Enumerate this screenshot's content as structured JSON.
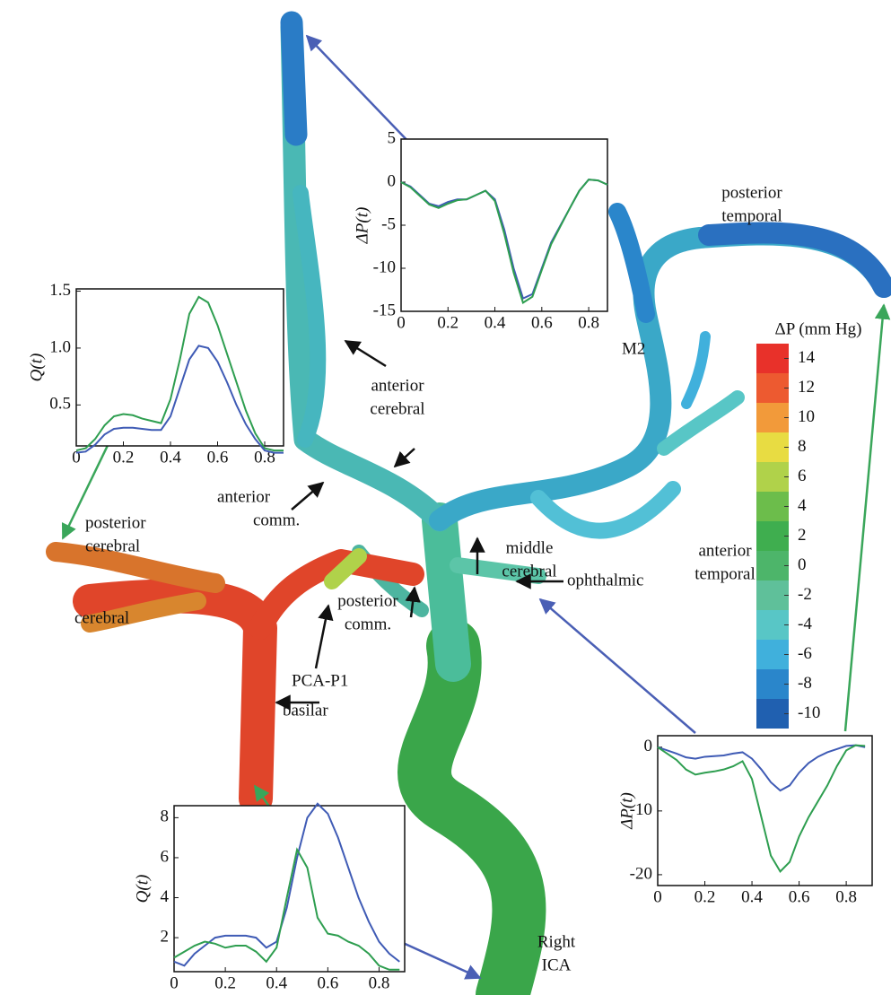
{
  "chart_data": [
    {
      "type": "line",
      "ylabel": "ΔP(t)",
      "x": [
        0,
        0.04,
        0.08,
        0.12,
        0.16,
        0.2,
        0.24,
        0.28,
        0.32,
        0.36,
        0.4,
        0.44,
        0.48,
        0.52,
        0.56,
        0.6,
        0.64,
        0.68,
        0.72,
        0.76,
        0.8,
        0.84,
        0.88
      ],
      "xlim": [
        0,
        0.88
      ],
      "ylim": [
        -15,
        5
      ],
      "xticks": [
        0,
        0.2,
        0.4,
        0.6,
        0.8
      ],
      "yticks": [
        -15,
        -10,
        -5,
        0,
        5
      ],
      "series": [
        {
          "color": "#3f5bb5",
          "values": [
            0,
            -0.5,
            -1.5,
            -2.5,
            -2.8,
            -2.3,
            -2,
            -2,
            -1.5,
            -1,
            -2,
            -5.5,
            -10,
            -13.5,
            -13,
            -10,
            -7,
            -5,
            -3,
            -1,
            0.3,
            0.2,
            -0.3
          ]
        },
        {
          "color": "#2e9e50",
          "values": [
            0,
            -0.6,
            -1.6,
            -2.6,
            -3,
            -2.5,
            -2.1,
            -2,
            -1.5,
            -1,
            -2.2,
            -6,
            -10.5,
            -14,
            -13.3,
            -10.2,
            -7.2,
            -5.1,
            -3,
            -1,
            0.3,
            0.2,
            -0.3
          ]
        }
      ]
    },
    {
      "type": "line",
      "ylabel": "Q(t)",
      "x": [
        0,
        0.04,
        0.08,
        0.12,
        0.16,
        0.2,
        0.24,
        0.28,
        0.32,
        0.36,
        0.4,
        0.44,
        0.48,
        0.52,
        0.56,
        0.6,
        0.64,
        0.68,
        0.72,
        0.76,
        0.8,
        0.84,
        0.88
      ],
      "xlim": [
        0,
        0.88
      ],
      "ylim": [
        0.14,
        1.52
      ],
      "xticks": [
        0,
        0.2,
        0.4,
        0.6,
        0.8
      ],
      "yticks": [
        0.5,
        {
          "value": 1,
          "label": "1.0"
        },
        1.5
      ],
      "series": [
        {
          "color": "#2e9e50",
          "values": [
            0.1,
            0.12,
            0.2,
            0.32,
            0.4,
            0.42,
            0.41,
            0.38,
            0.36,
            0.34,
            0.55,
            0.9,
            1.3,
            1.45,
            1.4,
            1.2,
            0.95,
            0.7,
            0.45,
            0.25,
            0.12,
            0.1,
            0.1
          ]
        },
        {
          "color": "#3f5bb5",
          "values": [
            0.08,
            0.09,
            0.15,
            0.24,
            0.29,
            0.3,
            0.3,
            0.29,
            0.28,
            0.28,
            0.4,
            0.65,
            0.9,
            1.02,
            1,
            0.88,
            0.7,
            0.5,
            0.33,
            0.2,
            0.1,
            0.08,
            0.08
          ]
        }
      ]
    },
    {
      "type": "line",
      "ylabel": "Q(t)",
      "x": [
        0,
        0.04,
        0.08,
        0.12,
        0.16,
        0.2,
        0.24,
        0.28,
        0.32,
        0.36,
        0.4,
        0.44,
        0.48,
        0.52,
        0.56,
        0.6,
        0.64,
        0.68,
        0.72,
        0.76,
        0.8,
        0.84,
        0.88
      ],
      "xlim": [
        0,
        0.9
      ],
      "ylim": [
        0.3,
        8.6
      ],
      "xticks": [
        0,
        0.2,
        0.4,
        0.6,
        0.8
      ],
      "yticks": [
        2,
        4,
        6,
        8
      ],
      "series": [
        {
          "color": "#3f5bb5",
          "values": [
            0.8,
            0.6,
            1.2,
            1.6,
            2,
            2.1,
            2.1,
            2.1,
            2,
            1.5,
            1.8,
            3.5,
            6,
            8,
            8.7,
            8.2,
            7,
            5.5,
            4,
            2.8,
            1.8,
            1.2,
            0.8
          ]
        },
        {
          "color": "#2e9e50",
          "values": [
            1,
            1.3,
            1.6,
            1.8,
            1.7,
            1.5,
            1.6,
            1.6,
            1.3,
            0.8,
            1.5,
            4,
            6.4,
            5.5,
            3,
            2.2,
            2.1,
            1.8,
            1.6,
            1.2,
            0.6,
            0.4,
            0.4
          ]
        }
      ]
    },
    {
      "type": "line",
      "ylabel": "ΔP(t)",
      "x": [
        0,
        0.04,
        0.08,
        0.12,
        0.16,
        0.2,
        0.24,
        0.28,
        0.32,
        0.36,
        0.4,
        0.44,
        0.48,
        0.52,
        0.56,
        0.6,
        0.64,
        0.68,
        0.72,
        0.76,
        0.8,
        0.84,
        0.88
      ],
      "xlim": [
        0,
        0.91
      ],
      "ylim": [
        -21.7,
        1.8
      ],
      "xticks": [
        0,
        0.2,
        0.4,
        0.6,
        0.8
      ],
      "yticks": [
        -20,
        -10,
        0
      ],
      "series": [
        {
          "color": "#3f5bb5",
          "values": [
            0,
            -0.5,
            -1,
            -1.6,
            -1.8,
            -1.5,
            -1.4,
            -1.3,
            -1,
            -0.8,
            -1.8,
            -3.5,
            -5.5,
            -6.8,
            -6,
            -4,
            -2.5,
            -1.5,
            -0.8,
            -0.3,
            0.2,
            0.3,
            0
          ]
        },
        {
          "color": "#2e9e50",
          "values": [
            0,
            -1,
            -2,
            -3.5,
            -4.3,
            -4,
            -3.8,
            -3.5,
            -3,
            -2.2,
            -5,
            -11,
            -17,
            -19.5,
            -18,
            -14,
            -11,
            -8.5,
            -6,
            -3,
            -0.5,
            0.3,
            0.2
          ]
        }
      ]
    }
  ],
  "colorbar": {
    "title": "ΔP (mm Hg)",
    "ticks": [
      14,
      12,
      10,
      8,
      6,
      4,
      2,
      0,
      -2,
      -4,
      -6,
      -8,
      -10
    ],
    "colors": [
      "#e8312a",
      "#ed5a30",
      "#f29a3a",
      "#e8dc42",
      "#b0d24a",
      "#6cbd4b",
      "#3fae4f",
      "#4db56a",
      "#5fc09a",
      "#58c6c6",
      "#40b0dc",
      "#2a86cb",
      "#2060b0"
    ]
  },
  "labels": [
    {
      "lines": [
        "posterior",
        "temporal"
      ]
    },
    {
      "lines": [
        "M2"
      ]
    },
    {
      "lines": [
        "anterior",
        "cerebral"
      ]
    },
    {
      "lines": [
        "anterior",
        "comm."
      ]
    },
    {
      "lines": [
        "posterior",
        "cerebral"
      ]
    },
    {
      "lines": [
        "cerebral"
      ]
    },
    {
      "lines": [
        "middle",
        "cerebral"
      ]
    },
    {
      "lines": [
        "ophthalmic"
      ]
    },
    {
      "lines": [
        "posterior",
        "comm."
      ]
    },
    {
      "lines": [
        "PCA-P1"
      ]
    },
    {
      "lines": [
        "basilar"
      ]
    },
    {
      "lines": [
        "anterior",
        "temporal"
      ]
    },
    {
      "lines": [
        "Right",
        "ICA"
      ]
    }
  ]
}
